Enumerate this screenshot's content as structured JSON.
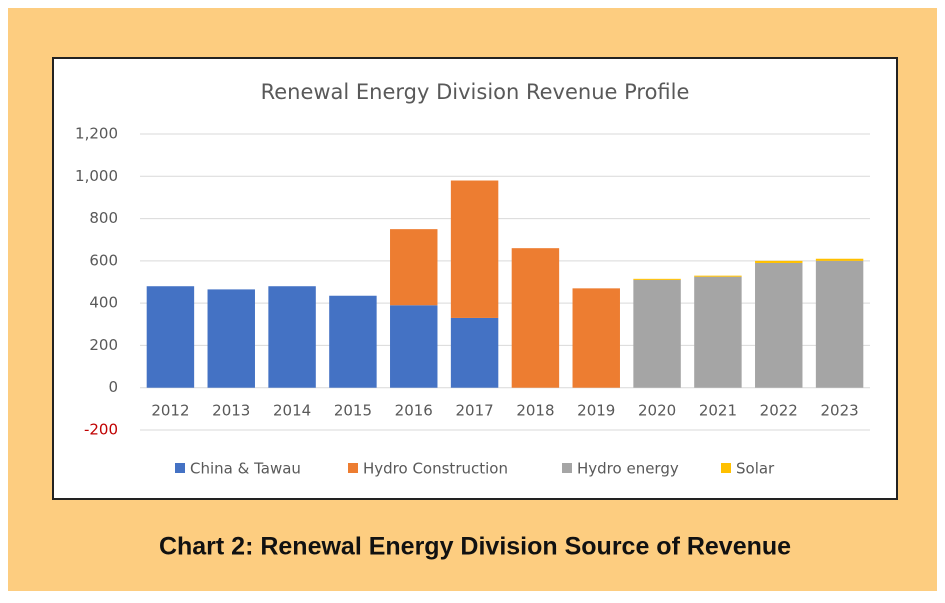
{
  "chart_data": {
    "type": "stacked_bar",
    "title": "Renewal Energy Division Revenue Profile",
    "caption": "Chart 2: Renewal Energy Division Source of Revenue",
    "categories": [
      "2012",
      "2013",
      "2014",
      "2015",
      "2016",
      "2017",
      "2018",
      "2019",
      "2020",
      "2021",
      "2022",
      "2023"
    ],
    "series": [
      {
        "name": "China & Tawau",
        "color": "#4472c4",
        "values": [
          480,
          465,
          480,
          435,
          390,
          330,
          null,
          null,
          null,
          null,
          null,
          null
        ]
      },
      {
        "name": "Hydro Construction",
        "color": "#ed7d31",
        "values": [
          null,
          null,
          null,
          null,
          360,
          650,
          660,
          470,
          null,
          null,
          null,
          null
        ]
      },
      {
        "name": "Hydro energy",
        "color": "#a5a5a5",
        "values": [
          null,
          null,
          null,
          null,
          null,
          null,
          null,
          null,
          510,
          525,
          590,
          600
        ]
      },
      {
        "name": "Solar",
        "color": "#ffc000",
        "values": [
          null,
          null,
          null,
          null,
          null,
          null,
          null,
          null,
          5,
          5,
          10,
          10
        ]
      }
    ],
    "ylim": [
      -200,
      1200
    ],
    "yticks": [
      -200,
      0,
      200,
      400,
      600,
      800,
      {
        "value": 1000,
        "label": "1,000"
      },
      {
        "value": 1200,
        "label": "1,200"
      }
    ],
    "negative_tick_color": "#c00000",
    "grid": true,
    "legend": "bottom"
  }
}
